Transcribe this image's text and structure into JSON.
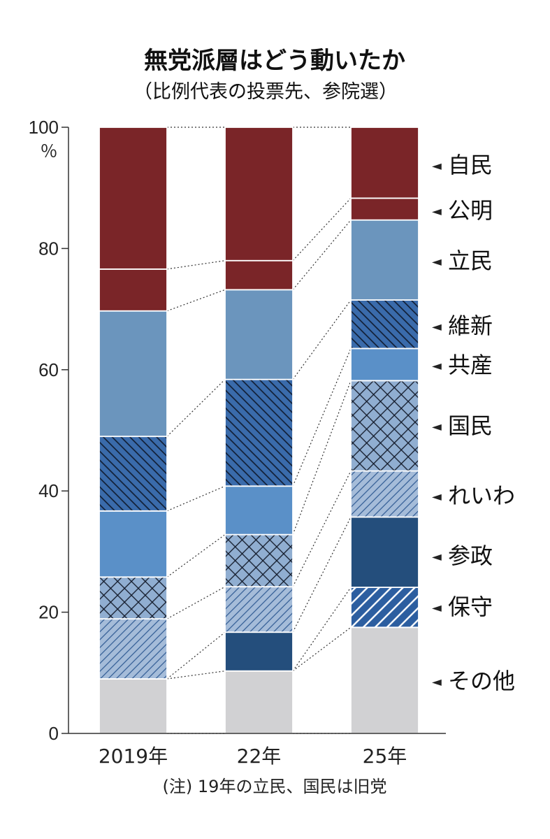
{
  "chart_data": {
    "type": "bar",
    "stacked": true,
    "title": "無党派層はどう動いたか",
    "subtitle": "（比例代表の投票先、参院選）",
    "ylabel": "％",
    "ylim": [
      0,
      100
    ],
    "yticks": [
      "0",
      "20",
      "40",
      "60",
      "80",
      "100"
    ],
    "categories": [
      "2019年",
      "22年",
      "25年"
    ],
    "series": [
      {
        "name": "その他",
        "values": [
          9.0,
          10.3,
          17.5
        ],
        "color": "#d1d1d3",
        "pattern": "none"
      },
      {
        "name": "保守",
        "values": [
          0,
          0,
          6.6
        ],
        "color": "#2c5ea0",
        "pattern": "hatch-light"
      },
      {
        "name": "参政",
        "values": [
          0,
          6.4,
          11.6
        ],
        "color": "#244e7c",
        "pattern": "none"
      },
      {
        "name": "れいわ",
        "values": [
          9.9,
          7.5,
          7.6
        ],
        "color": "#a5bcd9",
        "pattern": "hatch-blue"
      },
      {
        "name": "国民",
        "values": [
          6.9,
          8.6,
          14.9
        ],
        "color": "#90aed1",
        "pattern": "crosshatch"
      },
      {
        "name": "共産",
        "values": [
          10.9,
          8.0,
          5.3
        ],
        "color": "#5a90c8",
        "pattern": "none"
      },
      {
        "name": "維新",
        "values": [
          12.3,
          17.6,
          8.0
        ],
        "color": "#3a6bab",
        "pattern": "hatch-dark"
      },
      {
        "name": "立民",
        "values": [
          20.7,
          14.8,
          13.2
        ],
        "color": "#6b95bd",
        "pattern": "none"
      },
      {
        "name": "公明",
        "values": [
          6.9,
          4.8,
          3.6
        ],
        "color": "#7a2528",
        "pattern": "none"
      },
      {
        "name": "自民",
        "values": [
          23.4,
          22.0,
          11.7
        ],
        "color": "#7a2528",
        "pattern": "none"
      }
    ],
    "legend_marker": "◄",
    "grid": false,
    "legend_position": "right"
  },
  "note": "(注) 19年の立民、国民は旧党"
}
